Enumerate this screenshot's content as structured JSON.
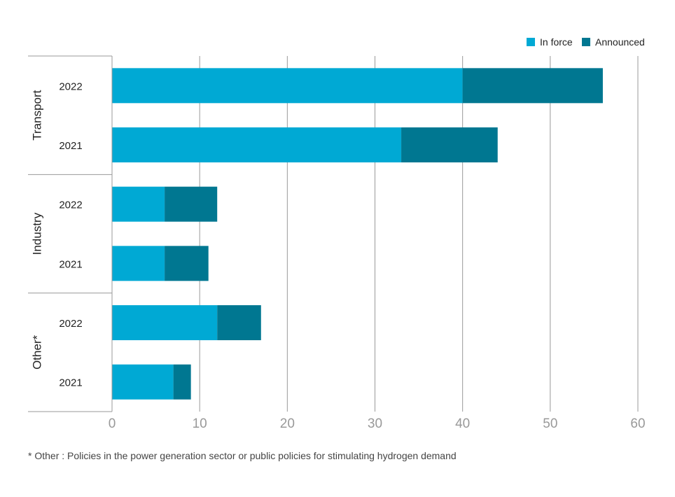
{
  "chart_data": {
    "type": "bar",
    "orientation": "horizontal",
    "stacked": true,
    "groups": [
      {
        "name": "Transport",
        "categories": [
          "2022",
          "2021"
        ]
      },
      {
        "name": "Industry",
        "categories": [
          "2022",
          "2021"
        ]
      },
      {
        "name": "Other*",
        "categories": [
          "2022",
          "2021"
        ]
      }
    ],
    "series": [
      {
        "name": "In force",
        "color": "#00a9d4",
        "values": [
          40,
          33,
          6,
          6,
          12,
          7
        ]
      },
      {
        "name": "Announced",
        "color": "#007791",
        "values": [
          16,
          11,
          6,
          5,
          5,
          2
        ]
      }
    ],
    "xlim": [
      0,
      60
    ],
    "xticks": [
      "0",
      "10",
      "20",
      "30",
      "40",
      "50",
      "60"
    ],
    "grid": true,
    "legend_position": "top-right",
    "footnote": "* Other : Policies in the power generation sector or public policies for stimulating hydrogen demand"
  }
}
